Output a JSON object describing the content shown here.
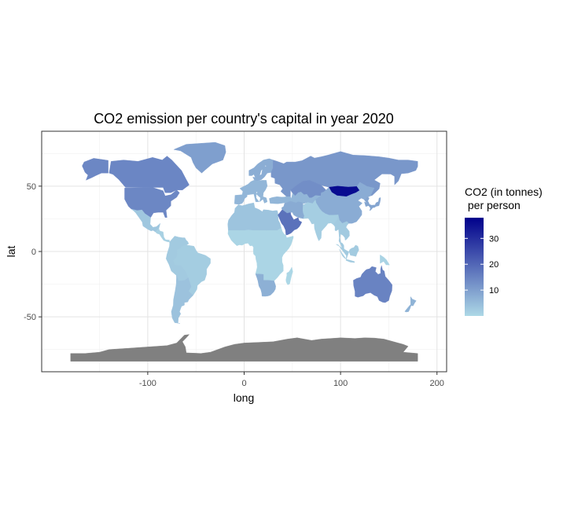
{
  "chart_data": {
    "type": "choropleth-map",
    "title": "CO2 emission per country's capital in year 2020",
    "xlabel": "long",
    "ylabel": "lat",
    "xlim": [
      -210,
      210
    ],
    "ylim": [
      -92,
      92
    ],
    "x_ticks": [
      -100,
      0,
      100,
      200
    ],
    "y_ticks": [
      -50,
      0,
      50
    ],
    "grid": true,
    "legend": {
      "title_line1": "CO2 (in tonnes)",
      "title_line2": " per person",
      "placement": "right",
      "range": [
        0,
        38
      ],
      "ticks": [
        10,
        20,
        30
      ],
      "color_low": "#add8e6",
      "color_high": "#00008b",
      "no_data_color": "#808080"
    },
    "regions": [
      {
        "name": "Canada",
        "value": 14.4
      },
      {
        "name": "United States",
        "value": 14.2
      },
      {
        "name": "Alaska",
        "value": 14.2
      },
      {
        "name": "Greenland",
        "value": 10.0
      },
      {
        "name": "Mexico",
        "value": 3.0
      },
      {
        "name": "Central America",
        "value": 1.2
      },
      {
        "name": "Brazil",
        "value": 2.0
      },
      {
        "name": "Andean countries",
        "value": 2.5
      },
      {
        "name": "Argentina & Chile",
        "value": 3.8
      },
      {
        "name": "Northern Europe",
        "value": 7.5
      },
      {
        "name": "Western Europe",
        "value": 6.0
      },
      {
        "name": "North Africa",
        "value": 3.5
      },
      {
        "name": "Sub-Saharan Africa",
        "value": 0.5
      },
      {
        "name": "Southern Africa",
        "value": 7.0
      },
      {
        "name": "Madagascar",
        "value": 0.2
      },
      {
        "name": "Russia",
        "value": 11.5
      },
      {
        "name": "Kazakhstan",
        "value": 13.0
      },
      {
        "name": "Central Asia",
        "value": 6.0
      },
      {
        "name": "Mongolia",
        "value": 36.0
      },
      {
        "name": "China",
        "value": 7.7
      },
      {
        "name": "Iran & Iraq",
        "value": 8.0
      },
      {
        "name": "Saudi Arabia & Gulf",
        "value": 18.0
      },
      {
        "name": "India",
        "value": 1.8
      },
      {
        "name": "Southeast Asia",
        "value": 2.5
      },
      {
        "name": "Japan & Korea",
        "value": 9.0
      },
      {
        "name": "Indonesia",
        "value": 2.3
      },
      {
        "name": "Papua New Guinea",
        "value": 0.8
      },
      {
        "name": "Australia",
        "value": 15.0
      },
      {
        "name": "New Zealand",
        "value": 6.5
      },
      {
        "name": "Antarctica",
        "value": null
      }
    ]
  }
}
